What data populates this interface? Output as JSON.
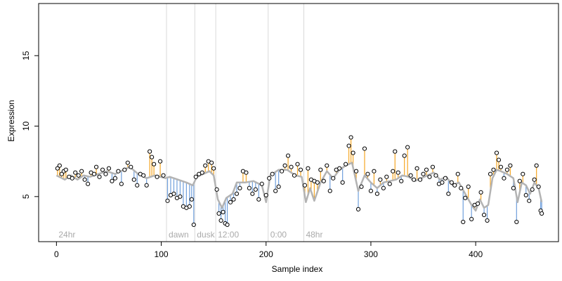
{
  "colors": {
    "above_fitted": "#f5a623",
    "below_fitted": "#6f9fdc",
    "fitted_line": "#b3b3b3",
    "vertical_marker": "#d9d9d9",
    "annotation_text": "#aaaaaa",
    "point_edge": "#000000"
  },
  "chart_data": {
    "type": "scatter",
    "title": "",
    "xlabel": "Sample index",
    "ylabel": "Expression",
    "xlim": [
      -17,
      479
    ],
    "ylim": [
      1.8,
      18.7
    ],
    "x_ticks": [
      0,
      100,
      200,
      300,
      400
    ],
    "y_ticks": [
      5,
      10,
      15
    ],
    "grid": false,
    "legend": "none",
    "annotations": [
      {
        "x": 0,
        "label": "24hr"
      },
      {
        "x": 105,
        "label": "dawn"
      },
      {
        "x": 132,
        "label": "dusk"
      },
      {
        "x": 152,
        "label": "12:00"
      },
      {
        "x": 202,
        "label": "0:00"
      },
      {
        "x": 236,
        "label": "48hr"
      }
    ],
    "vertical_lines": [
      105,
      132,
      152,
      202,
      236
    ],
    "series": [
      {
        "role": "observed",
        "values": [
          [
            1,
            7.0
          ],
          [
            3,
            7.2
          ],
          [
            5,
            6.6
          ],
          [
            7,
            6.8
          ],
          [
            9,
            6.9
          ],
          [
            12,
            6.4
          ],
          [
            15,
            6.3
          ],
          [
            18,
            6.7
          ],
          [
            21,
            6.5
          ],
          [
            24,
            6.8
          ],
          [
            27,
            6.2
          ],
          [
            30,
            5.9
          ],
          [
            33,
            6.7
          ],
          [
            36,
            6.6
          ],
          [
            38,
            7.1
          ],
          [
            41,
            6.4
          ],
          [
            44,
            6.9
          ],
          [
            47,
            6.6
          ],
          [
            50,
            7.0
          ],
          [
            53,
            6.1
          ],
          [
            56,
            6.3
          ],
          [
            59,
            6.8
          ],
          [
            62,
            5.9
          ],
          [
            65,
            6.9
          ],
          [
            68,
            7.4
          ],
          [
            71,
            7.1
          ],
          [
            74,
            6.2
          ],
          [
            77,
            5.8
          ],
          [
            80,
            6.6
          ],
          [
            83,
            6.5
          ],
          [
            86,
            5.8
          ],
          [
            89,
            8.2
          ],
          [
            91,
            7.8
          ],
          [
            93,
            7.3
          ],
          [
            96,
            6.4
          ],
          [
            99,
            7.5
          ],
          [
            102,
            6.5
          ],
          [
            106,
            4.7
          ],
          [
            109,
            5.1
          ],
          [
            112,
            5.2
          ],
          [
            115,
            4.9
          ],
          [
            118,
            5.0
          ],
          [
            121,
            4.3
          ],
          [
            124,
            4.2
          ],
          [
            127,
            4.3
          ],
          [
            129,
            4.8
          ],
          [
            131,
            3.0
          ],
          [
            133,
            6.4
          ],
          [
            136,
            6.6
          ],
          [
            139,
            6.7
          ],
          [
            142,
            7.2
          ],
          [
            145,
            7.5
          ],
          [
            148,
            7.4
          ],
          [
            150,
            7.0
          ],
          [
            153,
            5.5
          ],
          [
            155,
            3.8
          ],
          [
            157,
            3.3
          ],
          [
            159,
            3.9
          ],
          [
            161,
            3.1
          ],
          [
            163,
            3.0
          ],
          [
            166,
            4.6
          ],
          [
            169,
            4.8
          ],
          [
            172,
            5.2
          ],
          [
            175,
            5.6
          ],
          [
            178,
            6.8
          ],
          [
            181,
            6.7
          ],
          [
            184,
            5.6
          ],
          [
            187,
            5.2
          ],
          [
            190,
            5.5
          ],
          [
            193,
            4.8
          ],
          [
            196,
            5.9
          ],
          [
            200,
            5.1
          ],
          [
            203,
            6.3
          ],
          [
            206,
            6.6
          ],
          [
            209,
            5.4
          ],
          [
            212,
            5.7
          ],
          [
            215,
            6.8
          ],
          [
            218,
            7.2
          ],
          [
            221,
            7.9
          ],
          [
            224,
            7.1
          ],
          [
            227,
            6.5
          ],
          [
            230,
            7.3
          ],
          [
            233,
            6.9
          ],
          [
            237,
            5.8
          ],
          [
            240,
            7.0
          ],
          [
            243,
            6.2
          ],
          [
            246,
            6.1
          ],
          [
            249,
            6.0
          ],
          [
            252,
            6.9
          ],
          [
            255,
            6.1
          ],
          [
            258,
            7.2
          ],
          [
            261,
            5.4
          ],
          [
            264,
            6.3
          ],
          [
            267,
            6.9
          ],
          [
            270,
            7.0
          ],
          [
            273,
            6.0
          ],
          [
            276,
            7.3
          ],
          [
            279,
            8.6
          ],
          [
            281,
            9.2
          ],
          [
            283,
            8.1
          ],
          [
            286,
            6.8
          ],
          [
            288,
            4.1
          ],
          [
            291,
            5.7
          ],
          [
            294,
            8.4
          ],
          [
            297,
            6.6
          ],
          [
            300,
            5.4
          ],
          [
            303,
            6.8
          ],
          [
            306,
            5.2
          ],
          [
            309,
            6.2
          ],
          [
            312,
            5.6
          ],
          [
            315,
            6.4
          ],
          [
            318,
            5.9
          ],
          [
            321,
            6.8
          ],
          [
            323,
            8.2
          ],
          [
            326,
            6.7
          ],
          [
            329,
            6.1
          ],
          [
            332,
            7.9
          ],
          [
            335,
            8.5
          ],
          [
            338,
            6.5
          ],
          [
            341,
            6.2
          ],
          [
            344,
            7.0
          ],
          [
            347,
            6.2
          ],
          [
            350,
            6.6
          ],
          [
            353,
            6.9
          ],
          [
            356,
            6.4
          ],
          [
            359,
            7.1
          ],
          [
            362,
            6.5
          ],
          [
            365,
            5.9
          ],
          [
            368,
            6.0
          ],
          [
            371,
            6.3
          ],
          [
            374,
            5.2
          ],
          [
            377,
            6.0
          ],
          [
            380,
            5.8
          ],
          [
            383,
            6.6
          ],
          [
            386,
            5.6
          ],
          [
            388,
            3.2
          ],
          [
            390,
            4.9
          ],
          [
            393,
            5.7
          ],
          [
            396,
            3.4
          ],
          [
            399,
            4.4
          ],
          [
            402,
            4.5
          ],
          [
            405,
            5.3
          ],
          [
            408,
            3.7
          ],
          [
            411,
            3.3
          ],
          [
            414,
            6.6
          ],
          [
            417,
            6.9
          ],
          [
            420,
            8.1
          ],
          [
            422,
            7.6
          ],
          [
            424,
            7.1
          ],
          [
            427,
            6.3
          ],
          [
            430,
            6.9
          ],
          [
            433,
            7.2
          ],
          [
            436,
            5.6
          ],
          [
            439,
            3.2
          ],
          [
            442,
            6.1
          ],
          [
            445,
            6.6
          ],
          [
            448,
            5.1
          ],
          [
            451,
            4.7
          ],
          [
            454,
            5.5
          ],
          [
            456,
            6.2
          ],
          [
            458,
            7.2
          ],
          [
            460,
            5.7
          ],
          [
            462,
            4.0
          ],
          [
            463,
            3.8
          ]
        ]
      },
      {
        "role": "fitted",
        "values": [
          [
            0,
            6.5
          ],
          [
            8,
            6.2
          ],
          [
            14,
            6.5
          ],
          [
            20,
            6.2
          ],
          [
            26,
            6.5
          ],
          [
            32,
            6.4
          ],
          [
            40,
            6.6
          ],
          [
            48,
            6.8
          ],
          [
            56,
            6.6
          ],
          [
            64,
            6.9
          ],
          [
            70,
            7.1
          ],
          [
            78,
            6.6
          ],
          [
            86,
            6.3
          ],
          [
            94,
            6.5
          ],
          [
            104,
            6.3
          ],
          [
            108,
            6.4
          ],
          [
            116,
            6.2
          ],
          [
            124,
            6.0
          ],
          [
            130,
            5.8
          ],
          [
            134,
            6.4
          ],
          [
            140,
            6.6
          ],
          [
            146,
            6.8
          ],
          [
            150,
            6.5
          ],
          [
            154,
            4.8
          ],
          [
            158,
            4.2
          ],
          [
            162,
            4.9
          ],
          [
            168,
            5.2
          ],
          [
            172,
            6.0
          ],
          [
            180,
            6.0
          ],
          [
            188,
            6.1
          ],
          [
            196,
            5.8
          ],
          [
            200,
            4.6
          ],
          [
            204,
            6.5
          ],
          [
            212,
            6.9
          ],
          [
            220,
            6.9
          ],
          [
            228,
            6.5
          ],
          [
            234,
            6.4
          ],
          [
            238,
            4.6
          ],
          [
            242,
            5.6
          ],
          [
            246,
            4.7
          ],
          [
            252,
            6.0
          ],
          [
            258,
            6.8
          ],
          [
            264,
            6.3
          ],
          [
            270,
            6.9
          ],
          [
            276,
            7.2
          ],
          [
            282,
            7.4
          ],
          [
            288,
            5.4
          ],
          [
            294,
            6.5
          ],
          [
            300,
            6.0
          ],
          [
            306,
            5.6
          ],
          [
            312,
            6.0
          ],
          [
            318,
            6.1
          ],
          [
            324,
            6.2
          ],
          [
            330,
            6.5
          ],
          [
            336,
            6.4
          ],
          [
            342,
            6.1
          ],
          [
            348,
            6.3
          ],
          [
            354,
            6.5
          ],
          [
            360,
            6.7
          ],
          [
            366,
            6.2
          ],
          [
            372,
            6.4
          ],
          [
            378,
            5.8
          ],
          [
            384,
            6.0
          ],
          [
            390,
            5.2
          ],
          [
            396,
            4.4
          ],
          [
            400,
            4.0
          ],
          [
            404,
            4.8
          ],
          [
            408,
            4.2
          ],
          [
            412,
            4.4
          ],
          [
            416,
            6.3
          ],
          [
            420,
            6.9
          ],
          [
            424,
            6.8
          ],
          [
            430,
            6.6
          ],
          [
            436,
            6.3
          ],
          [
            440,
            4.6
          ],
          [
            444,
            6.0
          ],
          [
            448,
            5.8
          ],
          [
            452,
            5.2
          ],
          [
            456,
            6.0
          ],
          [
            460,
            5.6
          ],
          [
            463,
            4.6
          ]
        ]
      }
    ]
  }
}
